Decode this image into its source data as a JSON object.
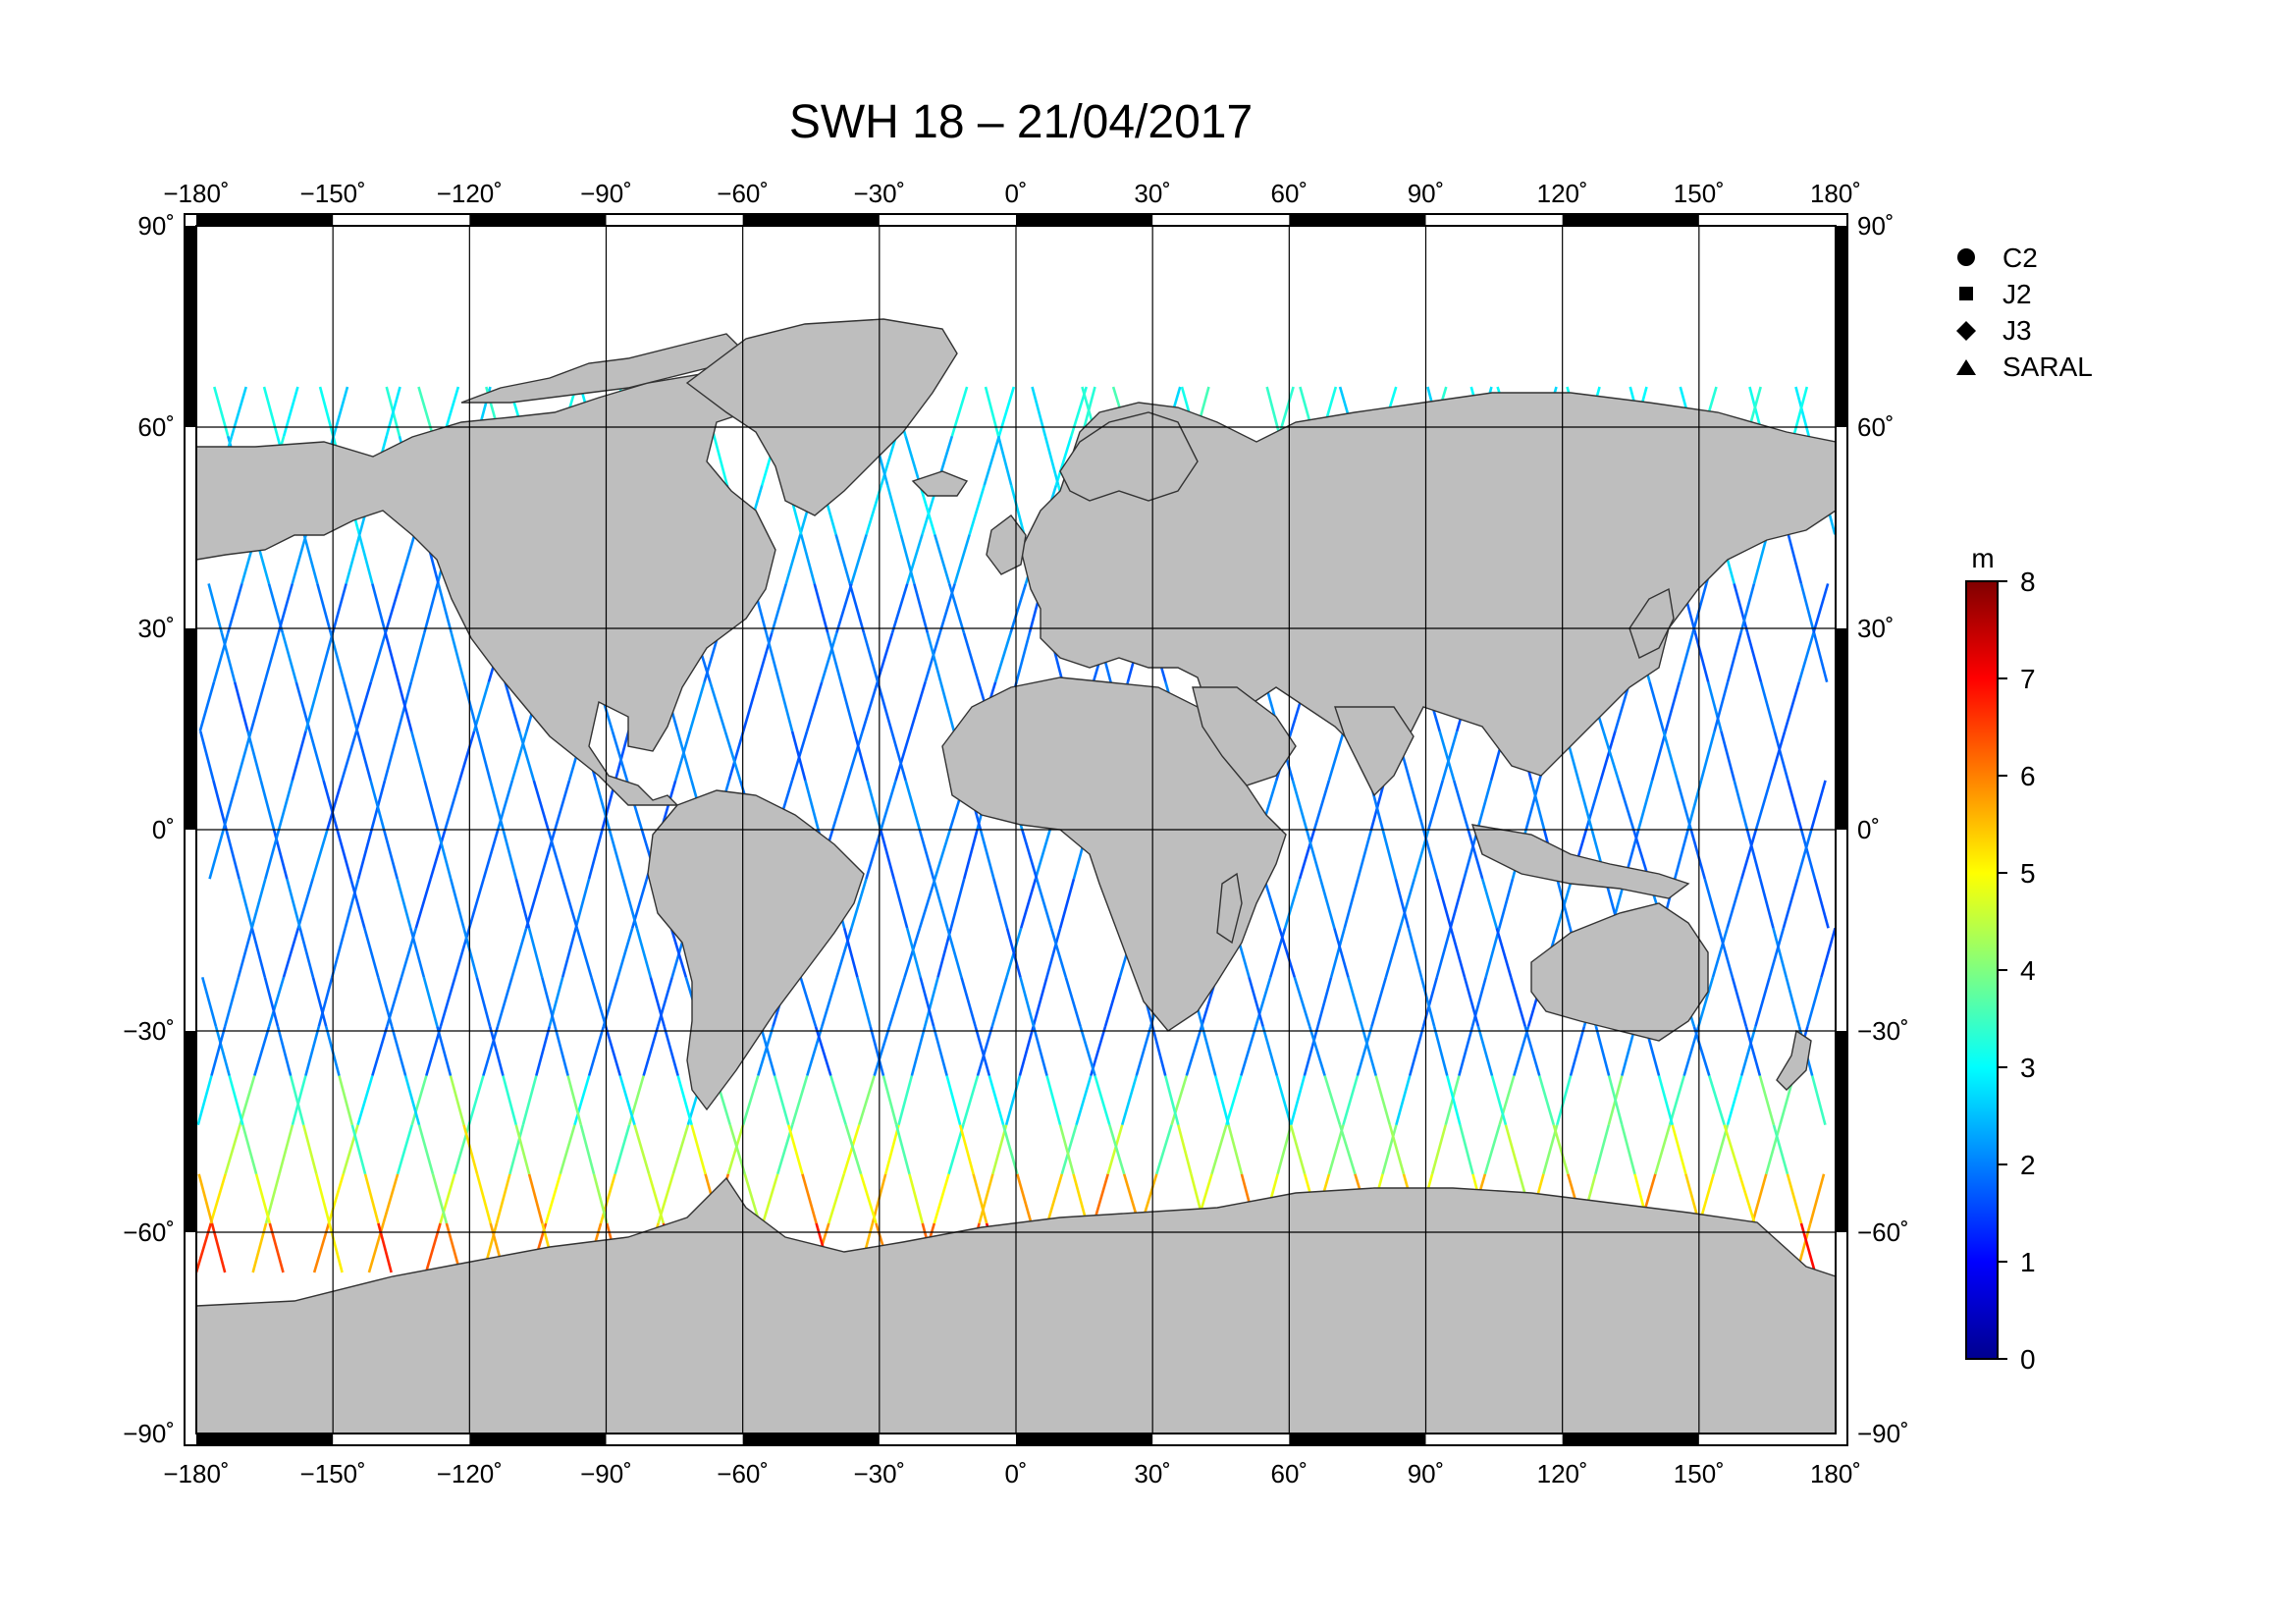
{
  "map": {
    "title": "SWH 18 – 21/04/2017",
    "projection": "equirectangular",
    "lon_range": [
      -180,
      180
    ],
    "lat_range": [
      -90,
      90
    ],
    "lon_ticks": [
      "−180",
      "−150",
      "−120",
      "−90",
      "−60",
      "−30",
      "0",
      "30",
      "60",
      "90",
      "120",
      "150",
      "180"
    ],
    "lat_ticks": [
      "90",
      "60",
      "30",
      "0",
      "−30",
      "−60",
      "−90"
    ],
    "degree_symbol": "˚",
    "land_color": "#bebebe",
    "grid": true
  },
  "legend": {
    "items": [
      {
        "marker": "circle",
        "label": "C2"
      },
      {
        "marker": "square",
        "label": "J2"
      },
      {
        "marker": "diamond",
        "label": "J3"
      },
      {
        "marker": "triangle",
        "label": "SARAL"
      }
    ]
  },
  "colorbar": {
    "unit": "m",
    "min": 0,
    "max": 8,
    "tick_labels": [
      "0",
      "1",
      "2",
      "3",
      "4",
      "5",
      "6",
      "7",
      "8"
    ],
    "colormap": "jet"
  }
}
